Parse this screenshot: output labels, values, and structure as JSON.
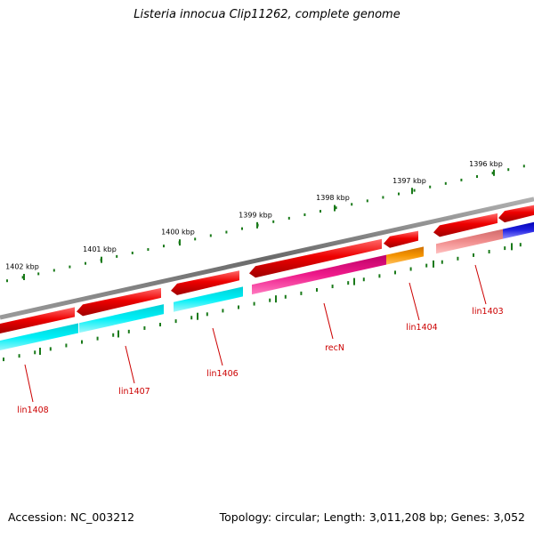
{
  "title": "Listeria innocua Clip11262, complete genome",
  "footer": {
    "accession": "Accession: NC_003212",
    "summary": "Topology: circular; Length: 3,011,208 bp; Genes: 3,052"
  },
  "scale_labels": [
    "1396 kbp",
    "1397 kbp",
    "1398 kbp",
    "1399 kbp",
    "1400 kbp",
    "1401 kbp",
    "1402 kbp"
  ],
  "gene_labels": [
    "lin1403",
    "lin1404",
    "recN",
    "lin1406",
    "lin1407",
    "lin1408"
  ],
  "colors": {
    "backbone": "#7a7a7a",
    "tick": "#1a7a1a",
    "cds": "#ee0000",
    "label": "#cc0000",
    "cyan": "#00e5ee",
    "magenta": "#e6157f",
    "orange": "#f08c00",
    "salmon": "#f08080",
    "blue": "#1515d0"
  }
}
